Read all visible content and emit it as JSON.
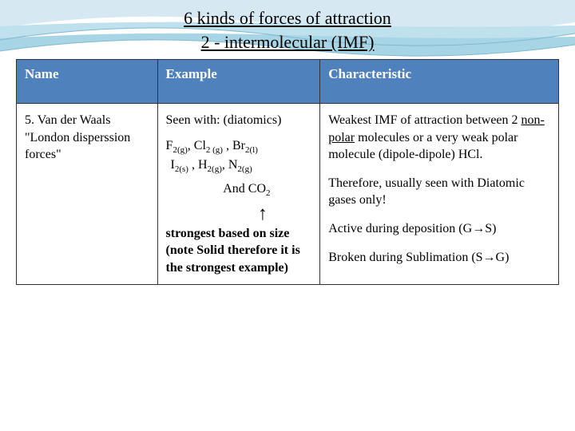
{
  "title": "6 kinds of forces of attraction",
  "subtitle": "2 - intermolecular (IMF)",
  "headers": {
    "name": "Name",
    "example": "Example",
    "characteristic": "Characteristic"
  },
  "row": {
    "name_line1": "5. Van der Waals",
    "name_line2": "\"London disperssion forces\"",
    "example_intro": "Seen with: (diatomics)",
    "formula_html": "F<span class='sub'>2(g)</span>, Cl<span class='sub'>2 (g)</span> , Br<span class='sub'>2(l)</span>",
    "formula2_html": "I<span class='sub'>2(s)</span> , H<span class='sub'>2(g)</span>, N<span class='sub'>2(g)</span>",
    "and_co2_html": "And CO<span class='sub'>2</span>",
    "arrow": "↑",
    "strongest_text": "strongest based on size (note Solid therefore it is the strongest example)",
    "char_p1_pre": "Weakest IMF of attraction between 2 ",
    "char_p1_u": "non-polar",
    "char_p1_post": " molecules or a very weak polar molecule (dipole-dipole)   HCl.",
    "char_p2": "Therefore, usually seen with Diatomic gases only!",
    "char_p3": "Active during deposition (G→S)",
    "char_p4": "Broken during Sublimation (S→G)"
  },
  "colors": {
    "header_bg": "#4f81bd",
    "header_text": "#ffffff",
    "border": "#333333",
    "wave1": "#d6e9f2",
    "wave2": "#bfe0ed",
    "wave3": "#a8d5e5"
  }
}
